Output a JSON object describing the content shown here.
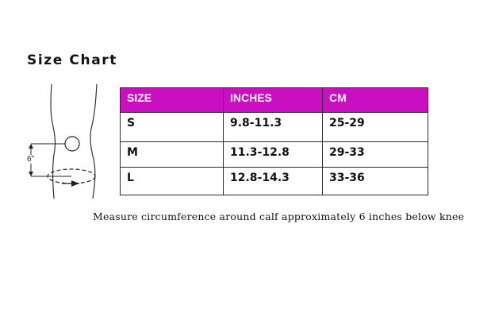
{
  "title": "Size Chart",
  "diagram": {
    "measure_label": "6\"",
    "icon": "leg-measurement-icon"
  },
  "table": {
    "headers": [
      "SIZE",
      "INCHES",
      "CM"
    ],
    "rows": [
      [
        "S",
        "9.8-11.3",
        "25-29"
      ],
      [
        "M",
        "11.3-12.8",
        "29-33"
      ],
      [
        "L",
        "12.8-14.3",
        "33-36"
      ]
    ],
    "header_color": "#c90fbf"
  },
  "note": "Measure circumference around calf approximately 6 inches below knee"
}
